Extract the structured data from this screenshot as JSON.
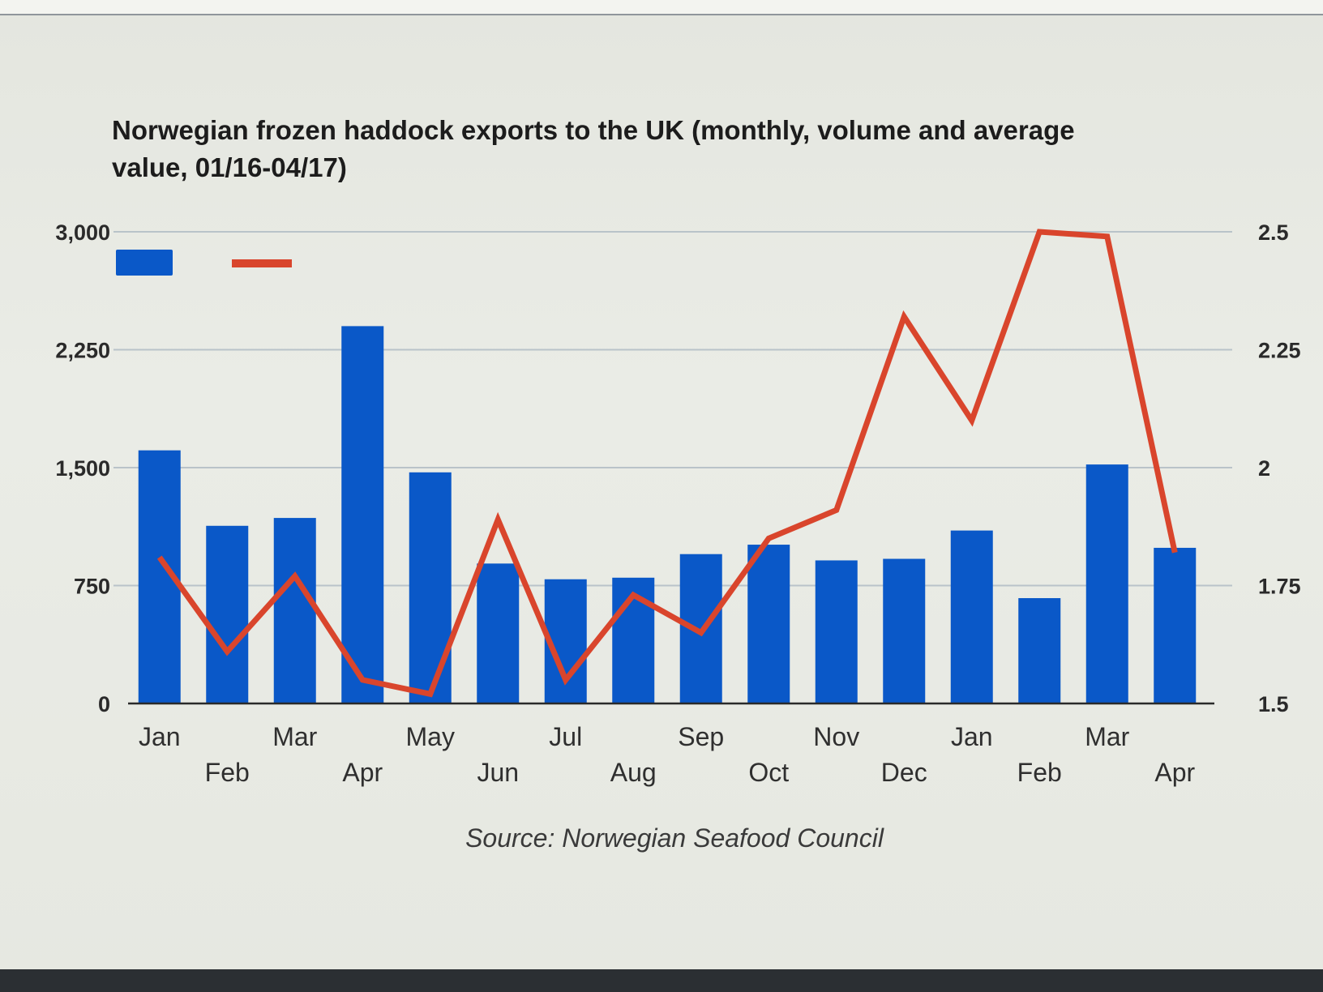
{
  "colors": {
    "bar": "#0a58c8",
    "line": "#d9452c",
    "grid": "#b9c3c9",
    "axis": "#2a2a2a"
  },
  "chart_data": {
    "type": "bar",
    "title_lines": [
      "Norwegian frozen haddock exports to the UK (monthly, volume and average",
      "value, 01/16-04/17)"
    ],
    "categories": [
      "Jan",
      "Feb",
      "Mar",
      "Apr",
      "May",
      "Jun",
      "Jul",
      "Aug",
      "Sep",
      "Oct",
      "Nov",
      "Dec",
      "Jan",
      "Feb",
      "Mar",
      "Apr"
    ],
    "series": [
      {
        "type": "bar",
        "axis": "left",
        "values": [
          1610,
          1130,
          1180,
          2400,
          1470,
          890,
          790,
          800,
          950,
          1010,
          910,
          920,
          1100,
          670,
          1520,
          990
        ]
      },
      {
        "type": "line",
        "axis": "right",
        "values": [
          1.81,
          1.61,
          1.77,
          1.55,
          1.52,
          1.89,
          1.55,
          1.73,
          1.65,
          1.85,
          1.91,
          2.32,
          2.1,
          2.5,
          2.49,
          1.82
        ]
      }
    ],
    "y_left": {
      "lim": [
        0,
        3000
      ],
      "ticks": [
        "0",
        "750",
        "1,500",
        "2,250",
        "3,000"
      ],
      "tick_values": [
        0,
        750,
        1500,
        2250,
        3000
      ]
    },
    "y_right": {
      "lim": [
        1.5,
        2.5
      ],
      "ticks": [
        "1.5",
        "1.75",
        "2",
        "2.25",
        "2.5"
      ],
      "tick_values": [
        1.5,
        1.75,
        2,
        2.25,
        2.5
      ]
    },
    "grid": true,
    "legend_placement": "top-left",
    "source": "Source: Norwegian Seafood Council"
  }
}
